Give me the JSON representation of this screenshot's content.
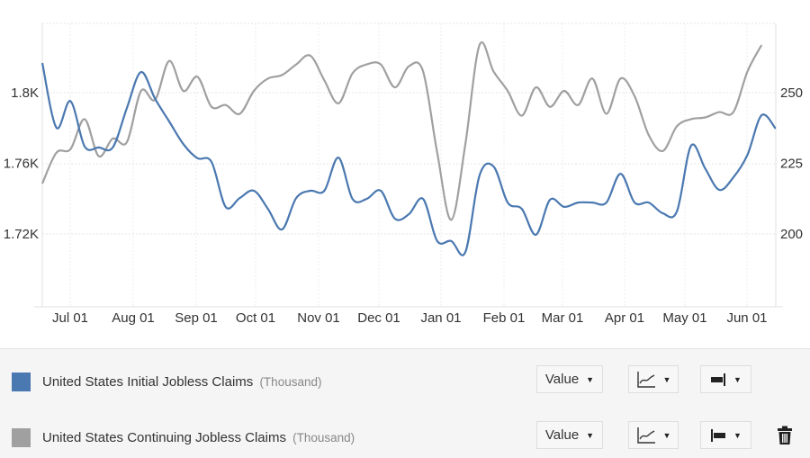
{
  "chart_data": {
    "type": "line",
    "title": "",
    "xlabel": "",
    "x_tick_labels": [
      "Jul 01",
      "Aug 01",
      "Sep 01",
      "Oct 01",
      "Nov 01",
      "Dec 01",
      "Jan 01",
      "Feb 01",
      "Mar 01",
      "Apr 01",
      "May 01",
      "Jun 01"
    ],
    "left_axis": {
      "ticks": [
        "1.72K",
        "1.76K",
        "1.8K"
      ],
      "values": [
        1.72,
        1.76,
        1.8
      ],
      "ylim": [
        1.68,
        1.84
      ],
      "series": "United States Continuing Jobless Claims"
    },
    "right_axis": {
      "ticks": [
        "200",
        "225",
        "250"
      ],
      "values": [
        200,
        225,
        250
      ],
      "ylim": [
        187.5,
        262.5
      ],
      "series": "United States Initial Jobless Claims"
    },
    "grid": true,
    "legend_position": "bottom",
    "series": [
      {
        "name": "United States Initial Jobless Claims",
        "unit": "Thousand",
        "axis": "right",
        "color": "#4a78b0",
        "values": [
          260.5,
          237.6,
          247,
          231,
          230.6,
          230.6,
          244.6,
          257.3,
          247.8,
          239.8,
          231.8,
          226.8,
          225.5,
          209.6,
          212.7,
          215.3,
          208.9,
          201.6,
          212.7,
          215.3,
          215.3,
          227,
          212.4,
          212.4,
          215.3,
          205.4,
          207,
          212.4,
          197.5,
          197.5,
          193.6,
          220.7,
          223.9,
          211.1,
          208.9,
          199.7,
          212.1,
          209.6,
          211.1,
          211.1,
          211.1,
          221.3,
          211.1,
          211.1,
          207.3,
          208,
          231.2,
          223.2,
          215.6,
          220,
          228,
          242,
          237.3
        ]
      },
      {
        "name": "United States Continuing Jobless Claims",
        "unit": "Thousand",
        "axis": "left",
        "color": "#a0a0a0",
        "values": [
          1.7485,
          1.766,
          1.768,
          1.785,
          1.764,
          1.774,
          1.772,
          1.801,
          1.796,
          1.818,
          1.801,
          1.809,
          1.792,
          1.793,
          1.788,
          1.801,
          1.808,
          1.81,
          1.816,
          1.821,
          1.807,
          1.794,
          1.811,
          1.816,
          1.816,
          1.803,
          1.815,
          1.812,
          1.766,
          1.728,
          1.771,
          1.827,
          1.812,
          1.801,
          1.787,
          1.803,
          1.792,
          1.801,
          1.793,
          1.808,
          1.788,
          1.808,
          1.798,
          1.776,
          1.767,
          1.781,
          1.785,
          1.786,
          1.789,
          1.789,
          1.812,
          1.827
        ]
      }
    ]
  },
  "legend": {
    "rows": [
      {
        "label": "United States Initial Jobless Claims",
        "unit": "(Thousand)",
        "color": "#4a78b0",
        "value_select": "Value",
        "chart_type_icon": "line-chart-icon",
        "axis_icon": "right-axis-icon"
      },
      {
        "label": "United States Continuing Jobless Claims",
        "unit": "(Thousand)",
        "color": "#a0a0a0",
        "value_select": "Value",
        "chart_type_icon": "line-chart-icon",
        "axis_icon": "left-axis-icon",
        "delete_icon": "trash-icon"
      }
    ]
  },
  "caret": "▼"
}
